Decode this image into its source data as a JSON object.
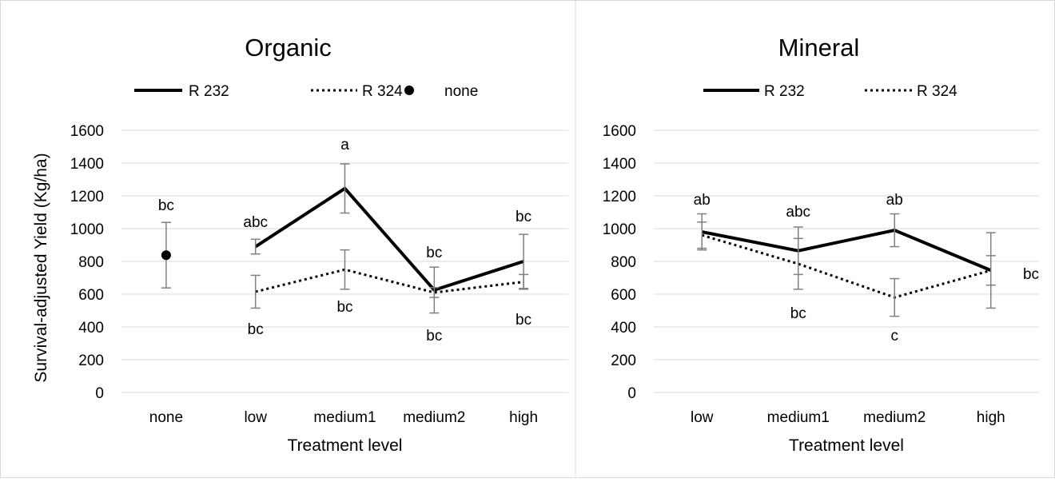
{
  "colors": {
    "frame": "#d9d9d9",
    "grid": "#d9d9d9",
    "series_line": "#000000",
    "error_bar": "#808080",
    "text": "#000000"
  },
  "chart_data": [
    {
      "type": "line",
      "title": "Organic",
      "xlabel": "Treatment level",
      "ylabel": "Survival-adjusted Yield (Kg/ha)",
      "categories": [
        "none",
        "low",
        "medium1",
        "medium2",
        "high"
      ],
      "yticks": [
        "0",
        "200",
        "400",
        "600",
        "800",
        "1000",
        "1200",
        "1400",
        "1600"
      ],
      "ylim": [
        0,
        1600
      ],
      "grid": true,
      "legend_position": "top",
      "legend": [
        {
          "label": "R 232",
          "style": "solid"
        },
        {
          "label": "R 324",
          "style": "dotted"
        },
        {
          "label": "none",
          "style": "marker"
        }
      ],
      "series": [
        {
          "name": "R 232",
          "style": "solid",
          "values": [
            null,
            890,
            1245,
            625,
            800
          ],
          "errors": [
            null,
            45,
            150,
            140,
            165
          ],
          "labels": [
            null,
            "abc",
            "a",
            "bc",
            "bc"
          ]
        },
        {
          "name": "R 324",
          "style": "dotted",
          "values": [
            null,
            615,
            750,
            610,
            675
          ],
          "errors": [
            null,
            100,
            120,
            30,
            45
          ],
          "labels": [
            null,
            "bc",
            "bc",
            "bc",
            "bc"
          ]
        },
        {
          "name": "none",
          "style": "marker",
          "values": [
            838,
            null,
            null,
            null,
            null
          ],
          "errors": [
            200,
            null,
            null,
            null,
            null
          ],
          "labels": [
            "bc",
            null,
            null,
            null,
            null
          ]
        }
      ]
    },
    {
      "type": "line",
      "title": "Mineral",
      "xlabel": "Treatment level",
      "ylabel": "",
      "categories": [
        "low",
        "medium1",
        "medium2",
        "high"
      ],
      "yticks": [
        "0",
        "200",
        "400",
        "600",
        "800",
        "1000",
        "1200",
        "1400",
        "1600"
      ],
      "ylim": [
        0,
        1600
      ],
      "grid": true,
      "legend_position": "top",
      "legend": [
        {
          "label": "R 232",
          "style": "solid"
        },
        {
          "label": "R 324",
          "style": "dotted"
        }
      ],
      "series": [
        {
          "name": "R 232",
          "style": "solid",
          "values": [
            980,
            865,
            990,
            745
          ],
          "errors": [
            110,
            145,
            100,
            230
          ],
          "labels": [
            "ab",
            "abc",
            "ab",
            "bc"
          ]
        },
        {
          "name": "R 324",
          "style": "dotted",
          "values": [
            960,
            785,
            580,
            745
          ],
          "errors": [
            80,
            155,
            115,
            90
          ],
          "labels": [
            null,
            "bc",
            "c",
            null
          ]
        }
      ]
    }
  ]
}
